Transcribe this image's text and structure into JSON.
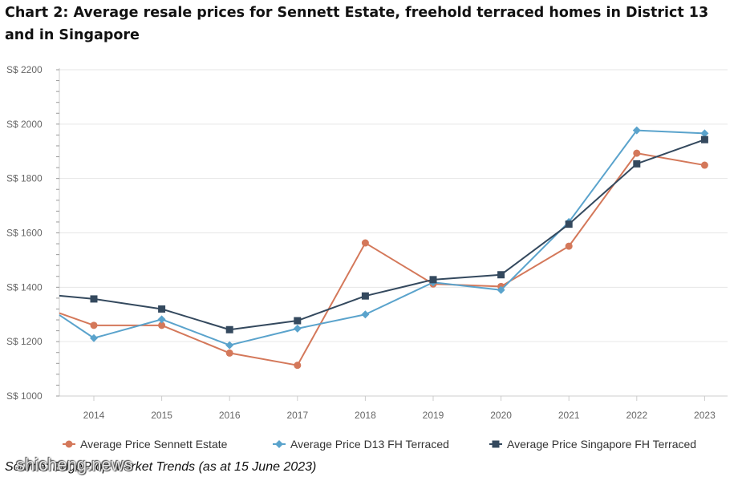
{
  "title": "Chart 2: Average resale prices for Sennett Estate, freehold terraced homes in District 13 and in Singapore",
  "source": "Source: EdgeProp Market Trends (as at 15 June 2023)",
  "watermark": "shicheng.news",
  "colors": {
    "sennett": "#d4785a",
    "d13": "#5aa3cc",
    "singapore": "#34495e",
    "grid": "#e6e6e6",
    "axis": "#cccccc"
  },
  "chart_data": {
    "type": "line",
    "title": "Chart 2: Average resale prices for Sennett Estate, freehold terraced homes in District 13 and in Singapore",
    "xlabel": "",
    "ylabel": "",
    "x": [
      "2014",
      "2015",
      "2016",
      "2017",
      "2018",
      "2019",
      "2020",
      "2021",
      "2022",
      "2023"
    ],
    "x_start_value": 1300,
    "y_ticks": [
      "S$ 1000",
      "S$ 1200",
      "S$ 1400",
      "S$ 1600",
      "S$ 1800",
      "S$ 2000",
      "S$ 2200"
    ],
    "ylim": [
      1000,
      2200
    ],
    "grid": true,
    "legend_position": "bottom",
    "series": [
      {
        "name": "Average Price Sennett Estate",
        "color": "#d4785a",
        "marker": "circle",
        "start_value": 1305,
        "values": [
          1260,
          1260,
          1158,
          1113,
          1563,
          1412,
          1403,
          1551,
          1893,
          1849
        ]
      },
      {
        "name": "Average Price D13 FH Terraced",
        "color": "#5aa3cc",
        "marker": "diamond",
        "start_value": 1298,
        "values": [
          1213,
          1282,
          1187,
          1248,
          1300,
          1418,
          1390,
          1640,
          1977,
          1966
        ]
      },
      {
        "name": "Average Price Singapore FH Terraced",
        "color": "#34495e",
        "marker": "square",
        "start_value": 1369,
        "values": [
          1357,
          1320,
          1244,
          1277,
          1368,
          1428,
          1446,
          1632,
          1854,
          1943
        ]
      }
    ]
  }
}
